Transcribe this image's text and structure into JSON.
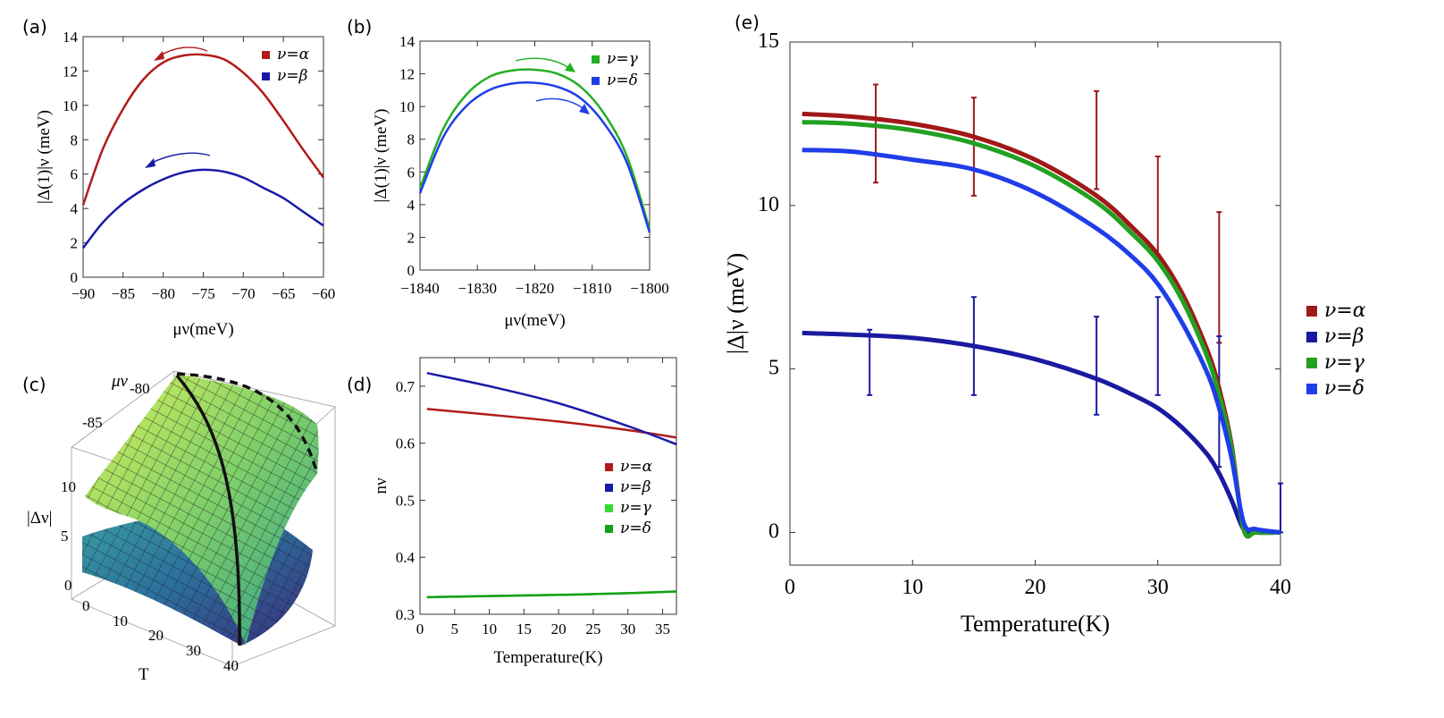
{
  "panel_labels": [
    "(a)",
    "(b)",
    "(c)",
    "(d)",
    "(e)"
  ],
  "colors": {
    "alpha": "#b11b1b",
    "beta": "#1a1aa8",
    "gamma": "#22b022",
    "delta": "#1f3de8",
    "gamma_d": "#33dd33",
    "delta_d": "#16a016"
  },
  "chart_data": [
    {
      "id": "a",
      "type": "line",
      "xlabel": "μν(meV)",
      "ylabel": "|Δ(1)|ν (meV)",
      "xlim": [
        -90,
        -60
      ],
      "ylim": [
        0,
        14
      ],
      "xticks": [
        -90,
        -85,
        -80,
        -75,
        -70,
        -65,
        -60
      ],
      "yticks": [
        0,
        2,
        4,
        6,
        8,
        10,
        12,
        14
      ],
      "legend": [
        "ν=α",
        "ν=β"
      ],
      "series": [
        {
          "name": "ν=α",
          "color": "#b11b1b",
          "x": [
            -90,
            -87.5,
            -85,
            -82.5,
            -80,
            -77.5,
            -75,
            -72.5,
            -70,
            -67.5,
            -65,
            -62.5,
            -60
          ],
          "y": [
            4.2,
            7.5,
            9.8,
            11.5,
            12.5,
            12.9,
            12.95,
            12.7,
            11.9,
            10.7,
            9.1,
            7.4,
            5.8
          ]
        },
        {
          "name": "ν=β",
          "color": "#1a1aa8",
          "x": [
            -90,
            -87.5,
            -85,
            -82.5,
            -80,
            -77.5,
            -75,
            -72.5,
            -70,
            -67.5,
            -65,
            -62.5,
            -60
          ],
          "y": [
            1.7,
            3.2,
            4.3,
            5.1,
            5.7,
            6.1,
            6.25,
            6.15,
            5.8,
            5.2,
            4.6,
            3.8,
            3.0
          ]
        }
      ]
    },
    {
      "id": "b",
      "type": "line",
      "xlabel": "μν(meV)",
      "ylabel": "|Δ(1)|ν (meV)",
      "xlim": [
        -1840,
        -1800
      ],
      "ylim": [
        0,
        14
      ],
      "xticks": [
        -1840,
        -1830,
        -1820,
        -1810,
        -1800
      ],
      "yticks": [
        0,
        2,
        4,
        6,
        8,
        10,
        12,
        14
      ],
      "legend": [
        "ν=γ",
        "ν=δ"
      ],
      "series": [
        {
          "name": "ν=γ",
          "color": "#22b022",
          "x": [
            -1840,
            -1836,
            -1832,
            -1828,
            -1824,
            -1820,
            -1816,
            -1812,
            -1808,
            -1804,
            -1800
          ],
          "y": [
            5.0,
            8.6,
            10.7,
            11.8,
            12.2,
            12.25,
            12.0,
            11.2,
            9.6,
            7.0,
            2.5
          ]
        },
        {
          "name": "ν=δ",
          "color": "#1f3de8",
          "x": [
            -1840,
            -1836,
            -1832,
            -1828,
            -1824,
            -1820,
            -1816,
            -1812,
            -1808,
            -1804,
            -1800
          ],
          "y": [
            4.7,
            8.1,
            10.0,
            11.0,
            11.4,
            11.45,
            11.2,
            10.5,
            9.0,
            6.6,
            2.3
          ]
        }
      ]
    },
    {
      "id": "c",
      "type": "surface",
      "xlabel": "T",
      "ylabel": "μν",
      "zlabel": "|Δν|",
      "tick_labels": {
        "mu": [
          "-80",
          "-85"
        ],
        "z": [
          "0",
          "5",
          "10"
        ],
        "t": [
          "0",
          "10",
          "20",
          "30",
          "40"
        ]
      }
    },
    {
      "id": "d",
      "type": "line",
      "xlabel": "Temperature(K)",
      "ylabel": "nν",
      "xlim": [
        0,
        37
      ],
      "ylim": [
        0.3,
        0.75
      ],
      "xticks": [
        0,
        5,
        10,
        15,
        20,
        25,
        30,
        35
      ],
      "yticks": [
        0.3,
        0.4,
        0.5,
        0.6,
        0.7
      ],
      "legend": [
        "ν=α",
        "ν=β",
        "ν=γ",
        "ν=δ"
      ],
      "series": [
        {
          "name": "ν=α",
          "color": "#b11b1b",
          "x": [
            1,
            10,
            20,
            30,
            37
          ],
          "y": [
            0.66,
            0.65,
            0.638,
            0.623,
            0.61
          ]
        },
        {
          "name": "ν=β",
          "color": "#1a1aa8",
          "x": [
            1,
            10,
            20,
            30,
            37
          ],
          "y": [
            0.723,
            0.7,
            0.67,
            0.63,
            0.598
          ]
        },
        {
          "name": "ν=γ",
          "color": "#33dd33",
          "x": [
            1,
            10,
            20,
            30,
            37
          ],
          "y": [
            0.33,
            0.332,
            0.334,
            0.337,
            0.34
          ]
        },
        {
          "name": "ν=δ",
          "color": "#16a016",
          "x": [
            1,
            10,
            20,
            30,
            37
          ],
          "y": [
            0.33,
            0.332,
            0.334,
            0.337,
            0.34
          ]
        }
      ]
    },
    {
      "id": "e",
      "type": "line",
      "xlabel": "Temperature(K)",
      "ylabel": "|Δ|ν (meV)",
      "xlim": [
        0,
        40
      ],
      "ylim": [
        -1,
        15
      ],
      "xticks": [
        0,
        10,
        20,
        30,
        40
      ],
      "yticks": [
        0,
        5,
        10,
        15
      ],
      "legend": [
        "ν=α",
        "ν=β",
        "ν=γ",
        "ν=δ"
      ],
      "series": [
        {
          "name": "ν=α",
          "color": "#a01818",
          "x": [
            1,
            5,
            10,
            15,
            20,
            25,
            28,
            30,
            32,
            34,
            35,
            36,
            37,
            38,
            40
          ],
          "y": [
            12.8,
            12.72,
            12.5,
            12.1,
            11.4,
            10.3,
            9.3,
            8.5,
            7.3,
            5.6,
            4.4,
            2.7,
            0.1,
            0.0,
            0.0
          ]
        },
        {
          "name": "ν=β",
          "color": "#1a1aa0",
          "x": [
            1,
            5,
            10,
            15,
            20,
            25,
            28,
            30,
            32,
            34,
            35,
            36,
            37,
            38,
            40
          ],
          "y": [
            6.1,
            6.05,
            5.95,
            5.7,
            5.3,
            4.7,
            4.2,
            3.8,
            3.2,
            2.4,
            1.8,
            1.0,
            0.1,
            0.0,
            0.0
          ]
        },
        {
          "name": "ν=γ",
          "color": "#22a022",
          "x": [
            1,
            5,
            10,
            15,
            20,
            25,
            28,
            30,
            32,
            34,
            35,
            36,
            37,
            38,
            40
          ],
          "y": [
            12.55,
            12.5,
            12.3,
            11.9,
            11.2,
            10.1,
            9.1,
            8.3,
            7.1,
            5.4,
            4.2,
            2.6,
            0.1,
            0.0,
            0.0
          ]
        },
        {
          "name": "ν=δ",
          "color": "#1f3de8",
          "x": [
            1,
            5,
            10,
            15,
            20,
            25,
            28,
            30,
            32,
            34,
            35,
            36,
            37,
            38,
            40
          ],
          "y": [
            11.7,
            11.65,
            11.4,
            11.1,
            10.4,
            9.3,
            8.4,
            7.6,
            6.4,
            4.9,
            3.8,
            2.3,
            0.3,
            0.1,
            0.0
          ]
        }
      ],
      "error_bars": [
        {
          "series": "ν=α",
          "color": "#a01818",
          "points": [
            [
              7,
              10.7,
              13.7
            ],
            [
              15,
              10.3,
              13.3
            ],
            [
              25,
              10.5,
              13.5
            ],
            [
              30,
              8.5,
              11.5
            ],
            [
              35,
              5.8,
              9.8
            ]
          ]
        },
        {
          "series": "ν=β",
          "color": "#1a1aa0",
          "points": [
            [
              6.5,
              4.2,
              6.2
            ],
            [
              15,
              4.2,
              7.2
            ],
            [
              25,
              3.6,
              6.6
            ],
            [
              30,
              4.2,
              7.2
            ],
            [
              35,
              2.0,
              6.0
            ],
            [
              40,
              0.0,
              1.5
            ]
          ]
        }
      ]
    }
  ]
}
